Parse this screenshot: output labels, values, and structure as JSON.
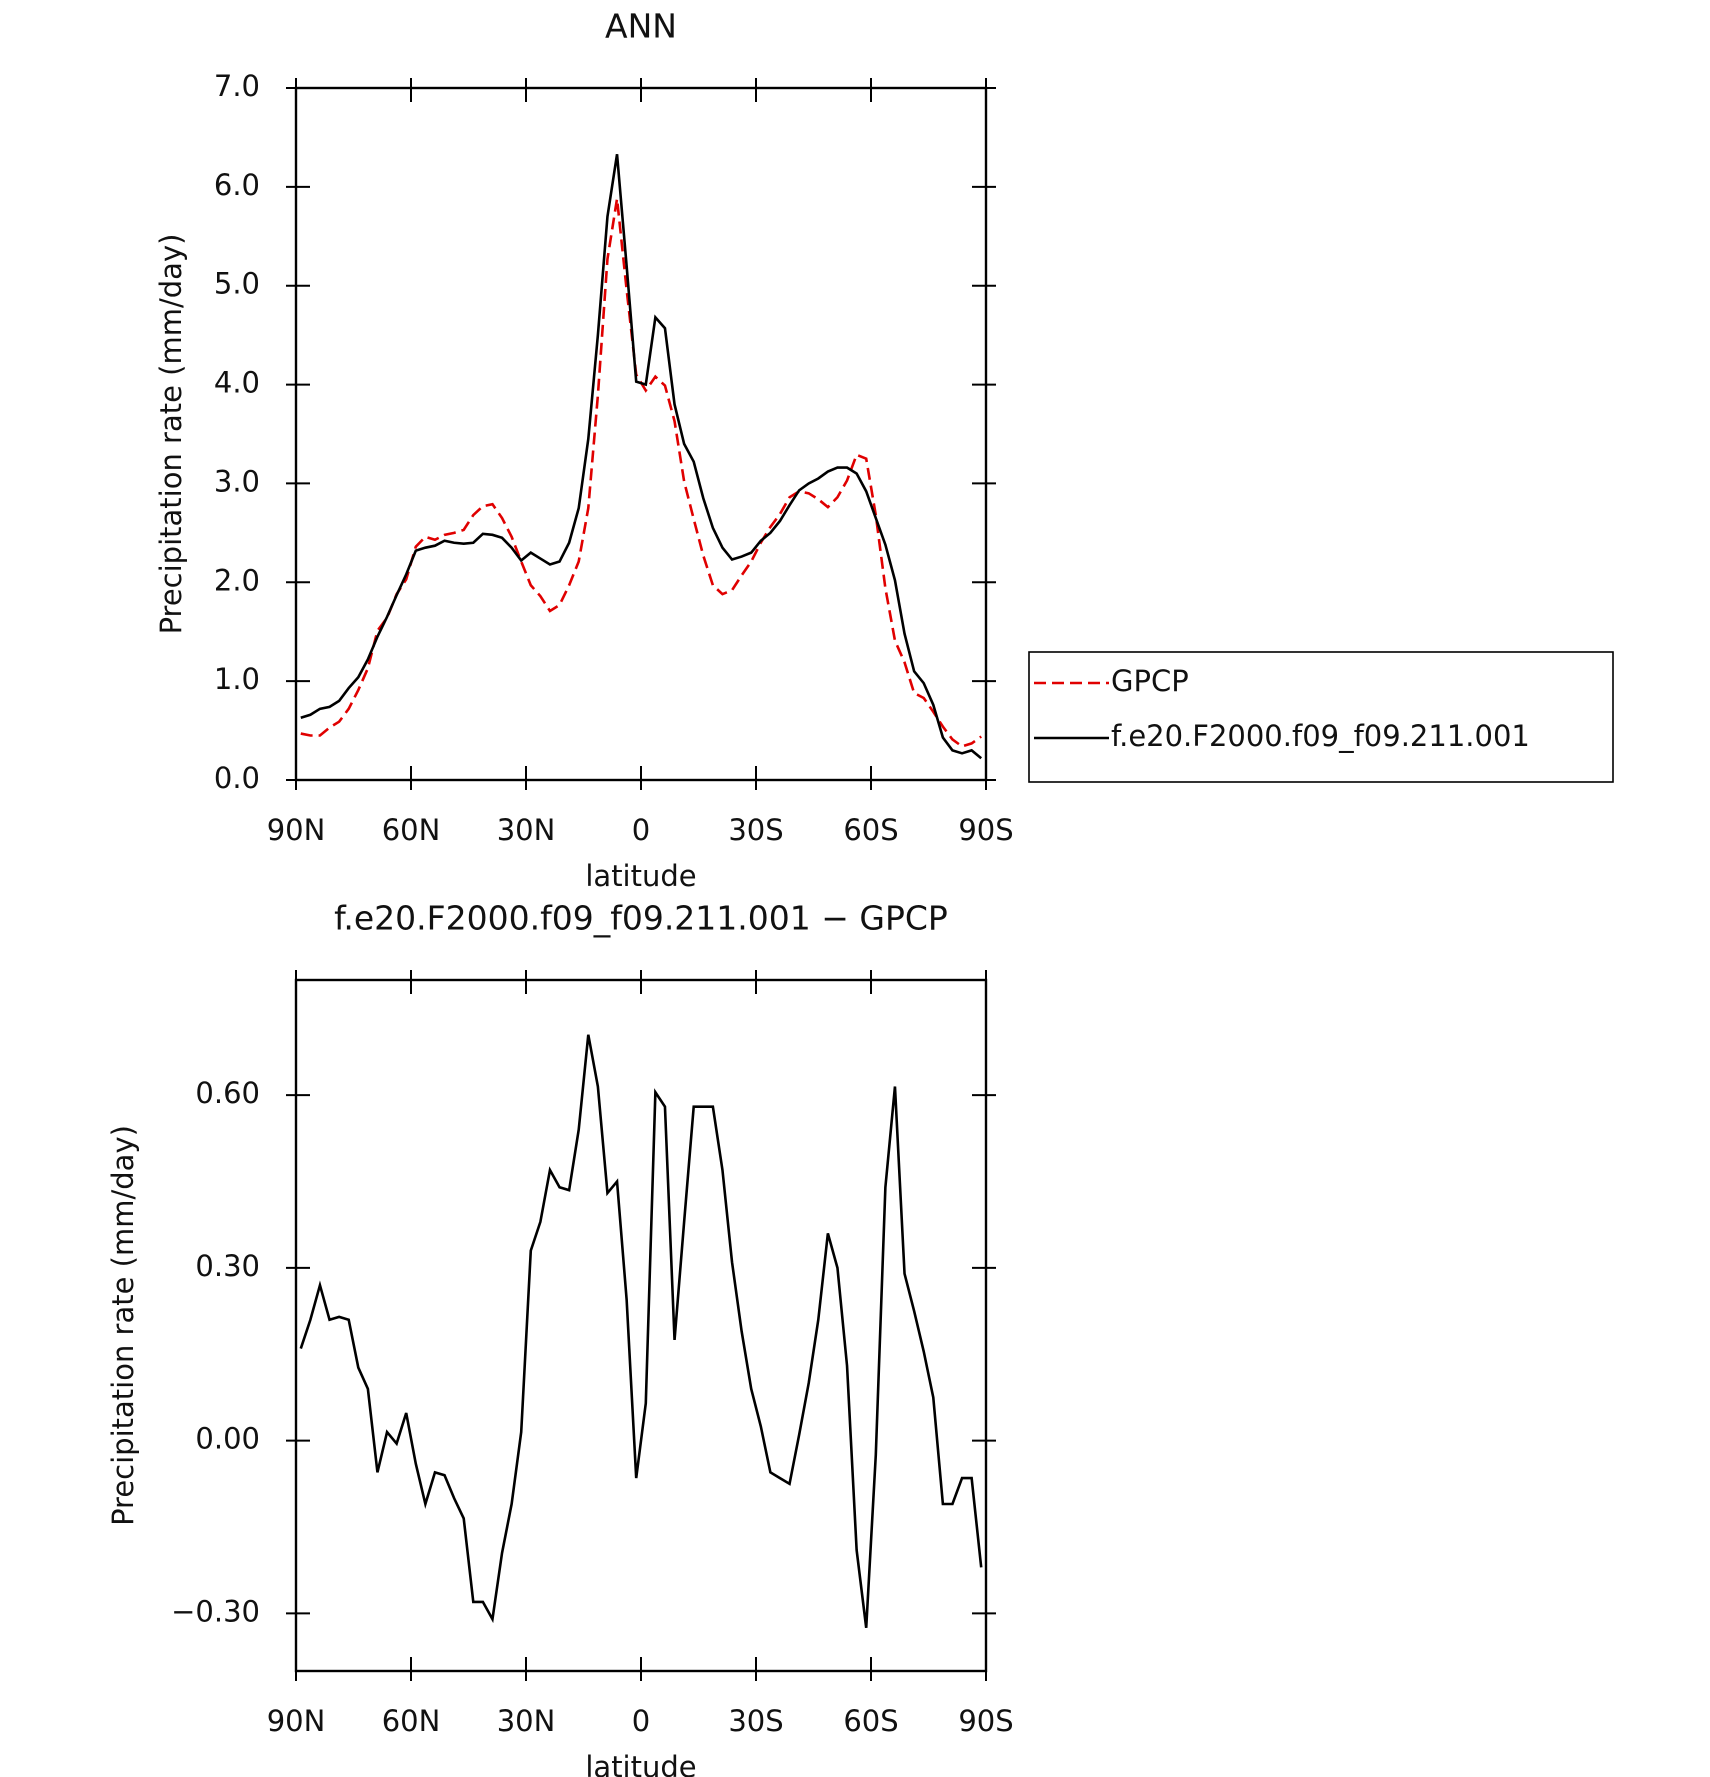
{
  "chart_data": [
    {
      "type": "line",
      "title": "ANN",
      "xlabel": "latitude",
      "ylabel": "Precipitation rate (mm/day)",
      "x": [
        88.75,
        86.25,
        83.75,
        81.25,
        78.75,
        76.25,
        73.75,
        71.25,
        68.75,
        66.25,
        63.75,
        61.25,
        58.75,
        56.25,
        53.75,
        51.25,
        48.75,
        46.25,
        43.75,
        41.25,
        38.75,
        36.25,
        33.75,
        31.25,
        28.75,
        26.25,
        23.75,
        21.25,
        18.75,
        16.25,
        13.75,
        11.25,
        8.75,
        6.25,
        3.75,
        1.25,
        -1.25,
        -3.75,
        -6.25,
        -8.75,
        -11.25,
        -13.75,
        -16.25,
        -18.75,
        -21.25,
        -23.75,
        -26.25,
        -28.75,
        -31.25,
        -33.75,
        -36.25,
        -38.75,
        -41.25,
        -43.75,
        -46.25,
        -48.75,
        -51.25,
        -53.75,
        -56.25,
        -58.75,
        -61.25,
        -63.75,
        -66.25,
        -68.75,
        -71.25,
        -73.75,
        -76.25,
        -78.75,
        -81.25,
        -83.75,
        -86.25,
        -88.75
      ],
      "series": [
        {
          "name": "GPCP",
          "color": "#e00000",
          "style": "dashed",
          "values": [
            0.47,
            0.45,
            0.45,
            0.53,
            0.59,
            0.72,
            0.91,
            1.13,
            1.51,
            1.64,
            1.88,
            2.03,
            2.36,
            2.46,
            2.43,
            2.48,
            2.5,
            2.53,
            2.68,
            2.77,
            2.79,
            2.65,
            2.46,
            2.21,
            1.97,
            1.86,
            1.71,
            1.77,
            1.97,
            2.21,
            2.75,
            3.89,
            5.27,
            5.88,
            4.96,
            4.1,
            3.94,
            4.08,
            3.99,
            3.63,
            3.02,
            2.64,
            2.27,
            1.97,
            1.88,
            1.92,
            2.07,
            2.21,
            2.4,
            2.56,
            2.69,
            2.86,
            2.92,
            2.9,
            2.84,
            2.76,
            2.86,
            3.03,
            3.29,
            3.25,
            2.68,
            1.94,
            1.41,
            1.19,
            0.88,
            0.83,
            0.69,
            0.54,
            0.41,
            0.34,
            0.37,
            0.44
          ]
        },
        {
          "name": "f.e20.F2000.f09_f09.211.001",
          "color": "#000000",
          "style": "solid",
          "values": [
            0.63,
            0.66,
            0.72,
            0.74,
            0.8,
            0.93,
            1.04,
            1.22,
            1.45,
            1.65,
            1.87,
            2.08,
            2.32,
            2.35,
            2.37,
            2.42,
            2.4,
            2.39,
            2.4,
            2.49,
            2.48,
            2.45,
            2.35,
            2.22,
            2.3,
            2.24,
            2.18,
            2.21,
            2.4,
            2.75,
            3.45,
            4.5,
            5.7,
            6.33,
            5.2,
            4.03,
            4.0,
            4.68,
            4.57,
            3.8,
            3.4,
            3.22,
            2.85,
            2.55,
            2.35,
            2.23,
            2.26,
            2.3,
            2.42,
            2.5,
            2.62,
            2.78,
            2.93,
            3.0,
            3.05,
            3.12,
            3.16,
            3.16,
            3.1,
            2.92,
            2.65,
            2.38,
            2.02,
            1.48,
            1.1,
            0.98,
            0.76,
            0.43,
            0.3,
            0.27,
            0.3,
            0.22
          ]
        }
      ],
      "xlim": [
        90,
        -90
      ],
      "xticks": [
        {
          "value": 90,
          "label": "90N"
        },
        {
          "value": 60,
          "label": "60N"
        },
        {
          "value": 30,
          "label": "30N"
        },
        0,
        {
          "value": -30,
          "label": "30S"
        },
        {
          "value": -60,
          "label": "60S"
        },
        {
          "value": -90,
          "label": "90S"
        }
      ],
      "ylim": [
        0,
        7
      ],
      "yticks": [
        {
          "value": 0,
          "label": "0.0"
        },
        {
          "value": 1,
          "label": "1.0"
        },
        {
          "value": 2,
          "label": "2.0"
        },
        {
          "value": 3,
          "label": "3.0"
        },
        {
          "value": 4,
          "label": "4.0"
        },
        {
          "value": 5,
          "label": "5.0"
        },
        {
          "value": 6,
          "label": "6.0"
        },
        {
          "value": 7,
          "label": "7.0"
        }
      ],
      "legend": "right"
    },
    {
      "type": "line",
      "title": "f.e20.F2000.f09_f09.211.001 − GPCP",
      "xlabel": "latitude",
      "ylabel": "Precipitation rate (mm/day)",
      "x": [
        88.75,
        86.25,
        83.75,
        81.25,
        78.75,
        76.25,
        73.75,
        71.25,
        68.75,
        66.25,
        63.75,
        61.25,
        58.75,
        56.25,
        53.75,
        51.25,
        48.75,
        46.25,
        43.75,
        41.25,
        38.75,
        36.25,
        33.75,
        31.25,
        28.75,
        26.25,
        23.75,
        21.25,
        18.75,
        16.25,
        13.75,
        11.25,
        8.75,
        6.25,
        3.75,
        1.25,
        -1.25,
        -3.75,
        -6.25,
        -8.75,
        -11.25,
        -13.75,
        -16.25,
        -18.75,
        -21.25,
        -23.75,
        -26.25,
        -28.75,
        -31.25,
        -33.75,
        -36.25,
        -38.75,
        -41.25,
        -43.75,
        -46.25,
        -48.75,
        -51.25,
        -53.75,
        -56.25,
        -58.75,
        -61.25,
        -63.75,
        -66.25,
        -68.75,
        -71.25,
        -73.75,
        -76.25,
        -78.75,
        -81.25,
        -83.75,
        -86.25,
        -88.75
      ],
      "color": "#000000",
      "values": [
        0.16,
        0.21,
        0.27,
        0.21,
        0.215,
        0.21,
        0.127,
        0.09,
        -0.055,
        0.015,
        -0.005,
        0.048,
        -0.04,
        -0.11,
        -0.055,
        -0.06,
        -0.1,
        -0.135,
        -0.28,
        -0.28,
        -0.31,
        -0.195,
        -0.11,
        0.015,
        0.33,
        0.38,
        0.47,
        0.44,
        0.435,
        0.54,
        0.705,
        0.615,
        0.43,
        0.45,
        0.245,
        -0.065,
        0.065,
        0.605,
        0.58,
        0.175,
        0.38,
        0.58,
        0.58,
        0.58,
        0.47,
        0.31,
        0.19,
        0.09,
        0.025,
        -0.055,
        -0.065,
        -0.075,
        0.01,
        0.1,
        0.21,
        0.36,
        0.3,
        0.13,
        -0.19,
        -0.325,
        -0.025,
        0.44,
        0.615,
        0.29,
        0.225,
        0.155,
        0.075,
        -0.11,
        -0.11,
        -0.065,
        -0.065,
        -0.22
      ],
      "xlim": [
        90,
        -90
      ],
      "xticks": [
        {
          "value": 90,
          "label": "90N"
        },
        {
          "value": 60,
          "label": "60N"
        },
        {
          "value": 30,
          "label": "30N"
        },
        0,
        {
          "value": -30,
          "label": "30S"
        },
        {
          "value": -60,
          "label": "60S"
        },
        {
          "value": -90,
          "label": "90S"
        }
      ],
      "ylim": [
        -0.4,
        0.8
      ],
      "yticks": [
        {
          "value": -0.3,
          "label": "−0.30"
        },
        {
          "value": 0,
          "label": "0.00"
        },
        {
          "value": 0.3,
          "label": "0.30"
        },
        {
          "value": 0.6,
          "label": "0.60"
        }
      ]
    }
  ]
}
